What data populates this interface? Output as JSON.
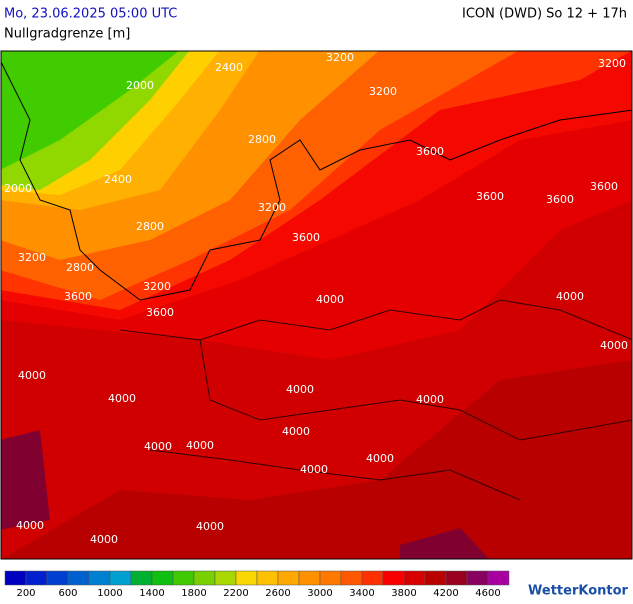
{
  "header": {
    "timestamp": "Mo, 23.06.2025 05:00 UTC",
    "model": "ICON (DWD) So 12 + 17h",
    "parameter": "Nullgradgrenze [m]"
  },
  "map": {
    "contour_labels": [
      "2400",
      "2000",
      "3200",
      "3200",
      "3200",
      "2800",
      "2400",
      "2000",
      "3600",
      "3600",
      "3600",
      "3600",
      "3200",
      "2800",
      "3600",
      "3200",
      "2800",
      "3200",
      "3600",
      "3600",
      "4000",
      "4000",
      "4000",
      "4000",
      "4000",
      "4000",
      "4000",
      "4000",
      "4000",
      "4000",
      "4000",
      "4000",
      "4000",
      "4000",
      "4000"
    ]
  },
  "legend": {
    "colors": [
      "#0000c0",
      "#0020d0",
      "#0040d0",
      "#0060d0",
      "#0080d0",
      "#00a0d0",
      "#00b030",
      "#10c010",
      "#40c800",
      "#78d000",
      "#a8d800",
      "#f8d800",
      "#ffc000",
      "#ffa800",
      "#ff9000",
      "#ff7800",
      "#ff5800",
      "#ff3000",
      "#f80000",
      "#d80000",
      "#b80000",
      "#980020",
      "#880060",
      "#a800a0"
    ],
    "labels": [
      "200",
      "600",
      "1000",
      "1400",
      "1800",
      "2200",
      "2600",
      "3000",
      "3400",
      "3800",
      "4200",
      "4600"
    ]
  },
  "logo": "WetterKontor"
}
